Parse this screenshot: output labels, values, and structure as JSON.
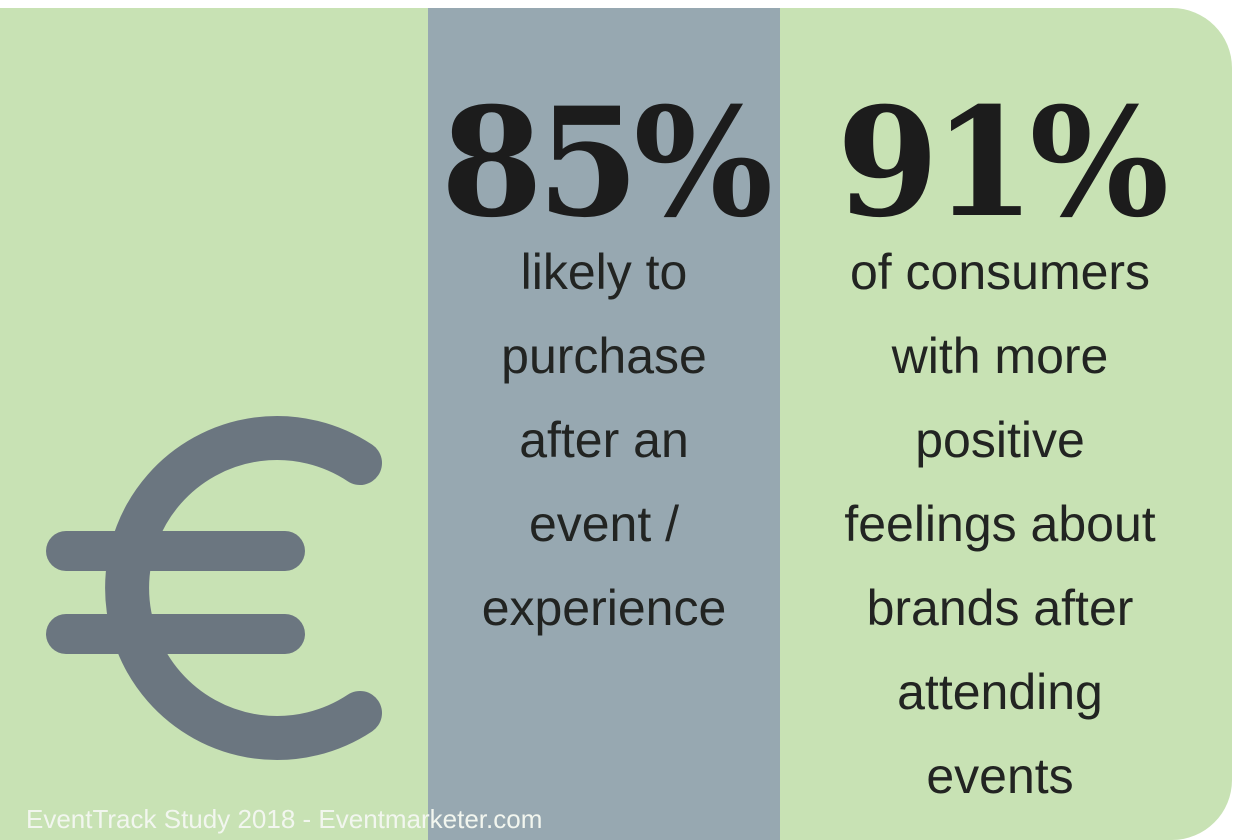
{
  "stats": [
    {
      "value": "85%",
      "caption": "likely to\npurchase\nafter an\nevent /\nexperience"
    },
    {
      "value": "91%",
      "caption": "of consumers\nwith more\npositive\nfeelings about\nbrands after\nattending\nevents"
    }
  ],
  "icon": "euro-icon",
  "footer": "EventTrack Study 2018 - Eventmarketer.com",
  "colors": {
    "background": "#c8e2b4",
    "band": "#97a8b1",
    "icon": "#6b7680",
    "text": "#1f211f",
    "footer_text": "#f2f6ef"
  }
}
